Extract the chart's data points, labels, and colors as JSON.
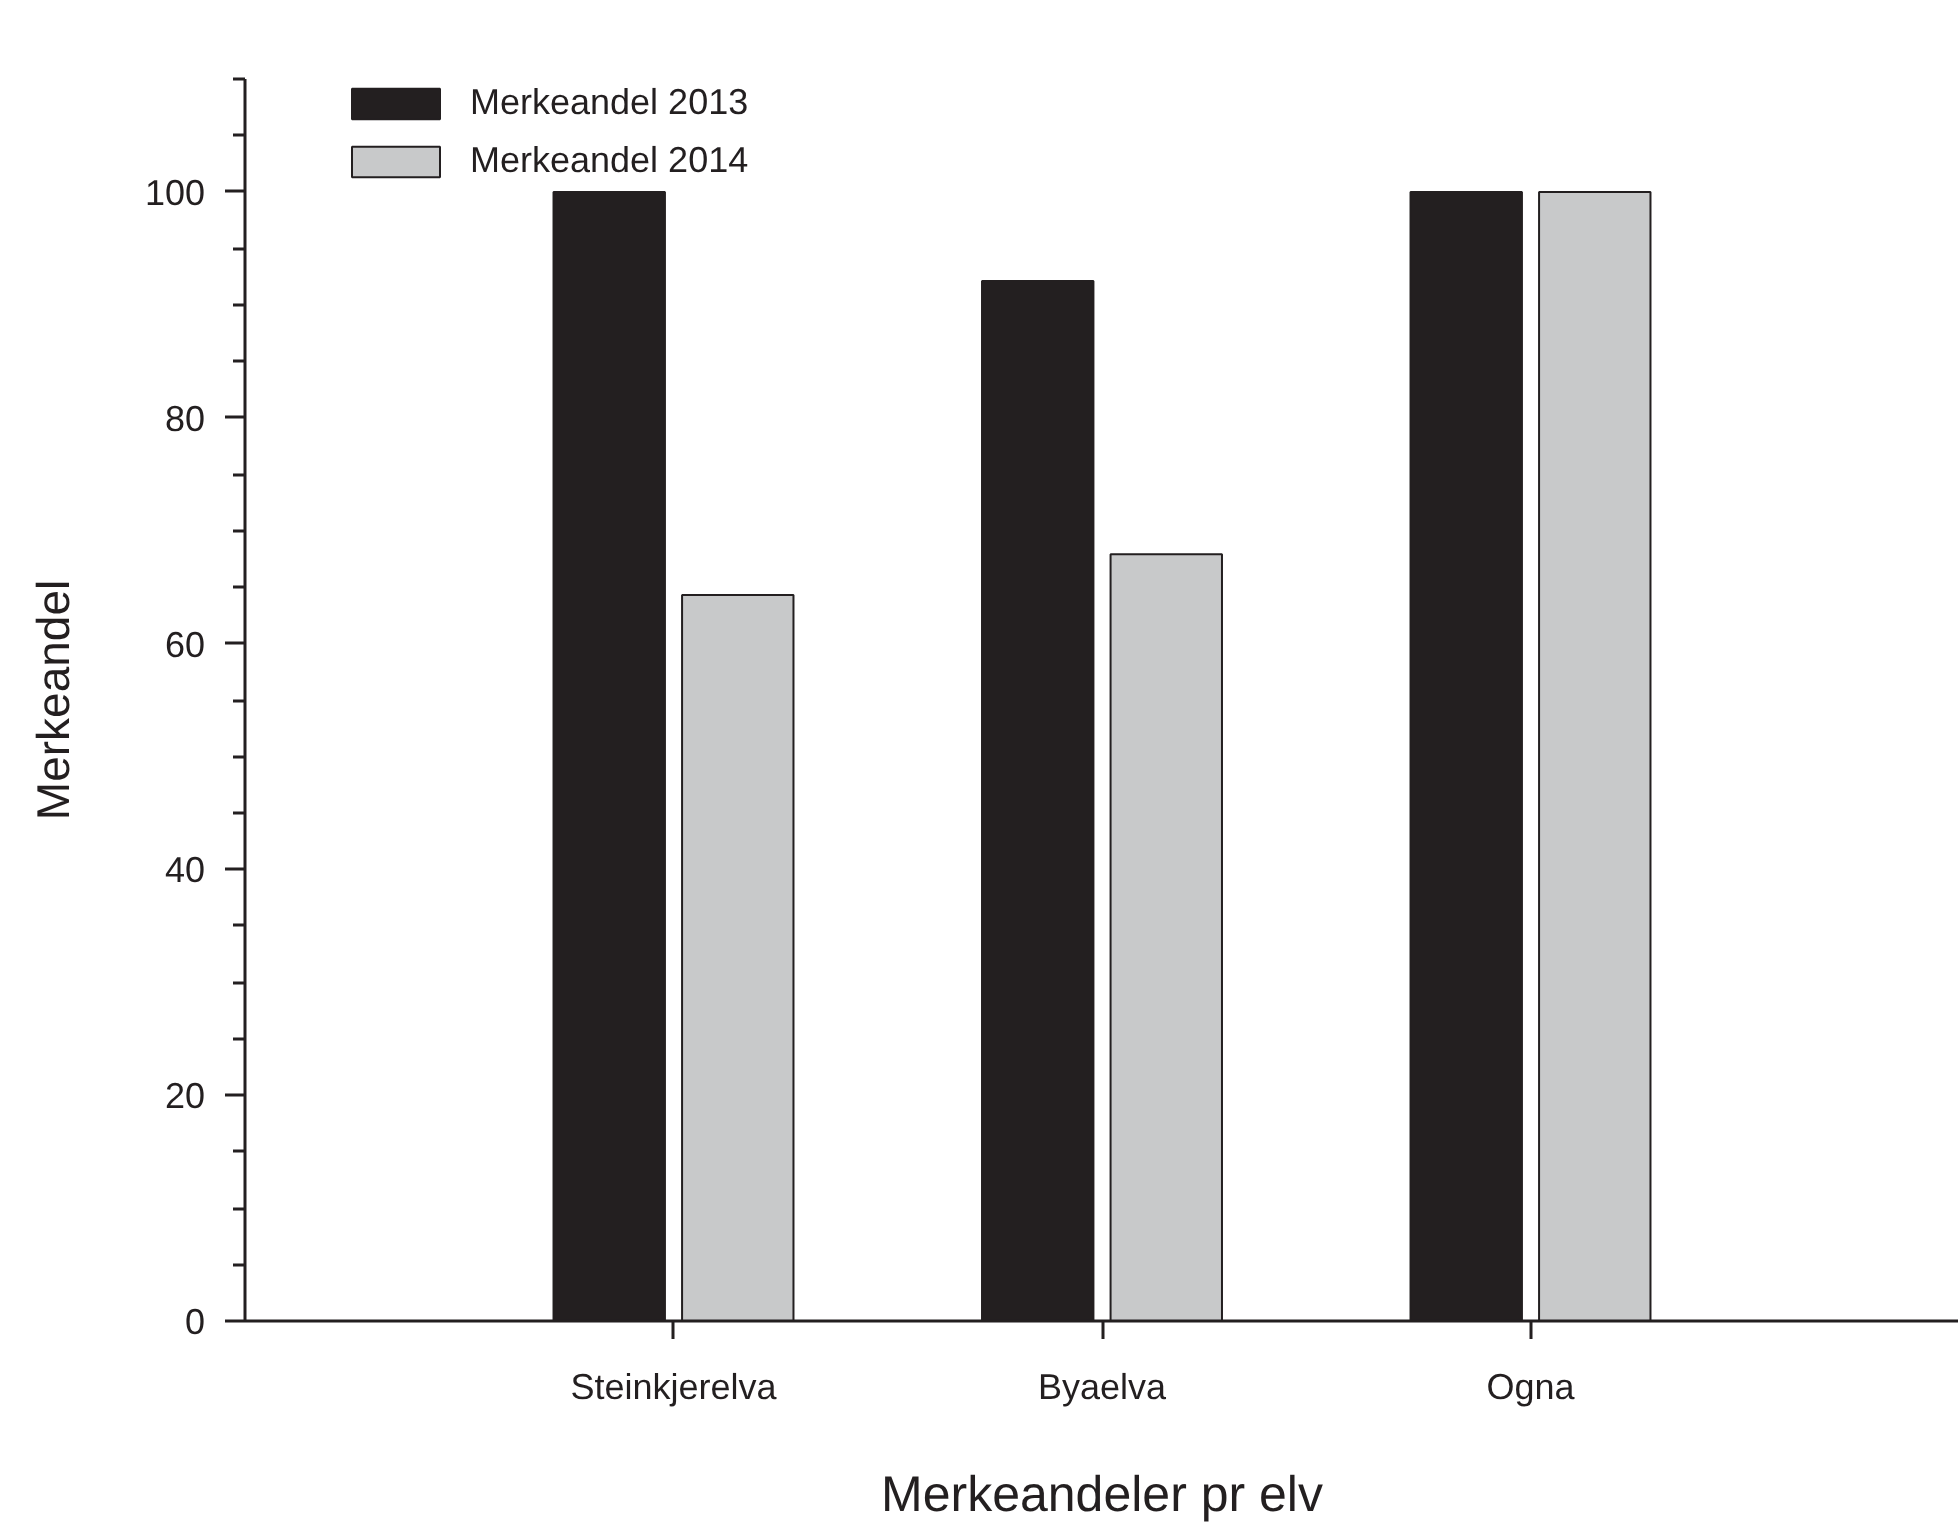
{
  "chart_data": {
    "type": "bar",
    "xlabel": "Merkeandeler pr elv",
    "ylabel": "Merkeandel",
    "categories": [
      "Steinkjerelva",
      "Byaelva",
      "Ogna"
    ],
    "series": [
      {
        "name": "Merkeandel 2013",
        "color": "#231f20",
        "values": [
          100,
          92.1,
          100
        ]
      },
      {
        "name": "Merkeandel 2014",
        "color": "#c8c9ca",
        "values": [
          64.3,
          67.9,
          100
        ]
      }
    ],
    "ylim": [
      0,
      110
    ],
    "yticks": [
      0,
      {
        "value": 5,
        "label": null
      },
      {
        "value": 10,
        "label": null
      },
      {
        "value": 15,
        "label": null
      },
      20,
      {
        "value": 25,
        "label": null
      },
      {
        "value": 30,
        "label": null
      },
      {
        "value": 35,
        "label": null
      },
      40,
      {
        "value": 45,
        "label": null
      },
      {
        "value": 50,
        "label": null
      },
      {
        "value": 55,
        "label": null
      },
      60,
      {
        "value": 65,
        "label": null
      },
      {
        "value": 70,
        "label": null
      },
      {
        "value": 75,
        "label": null
      },
      80,
      {
        "value": 85,
        "label": null
      },
      {
        "value": 90,
        "label": null
      },
      {
        "value": 95,
        "label": null
      },
      100,
      {
        "value": 105,
        "label": null
      },
      {
        "value": 110,
        "label": null
      }
    ],
    "legend": "top left"
  }
}
